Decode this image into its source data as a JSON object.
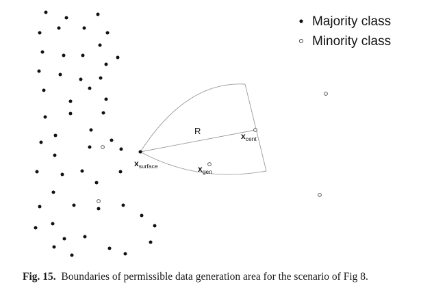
{
  "legend": {
    "majority_label": "Majority class",
    "minority_label": "Minority class"
  },
  "labels": {
    "radius": "R",
    "x_surface_base": "x",
    "x_surface_sub": "surface",
    "x_cent_base": "x",
    "x_cent_sub": "cent",
    "x_gen_base": "x",
    "x_gen_sub": "gen"
  },
  "caption": {
    "figure_label": "Fig. 15.",
    "text": "Boundaries of permissible data generation area for the scenario of Fig 8."
  },
  "colors": {
    "majority": "#111111",
    "minority_stroke": "#555555",
    "boundary": "#9a9a9a"
  }
}
